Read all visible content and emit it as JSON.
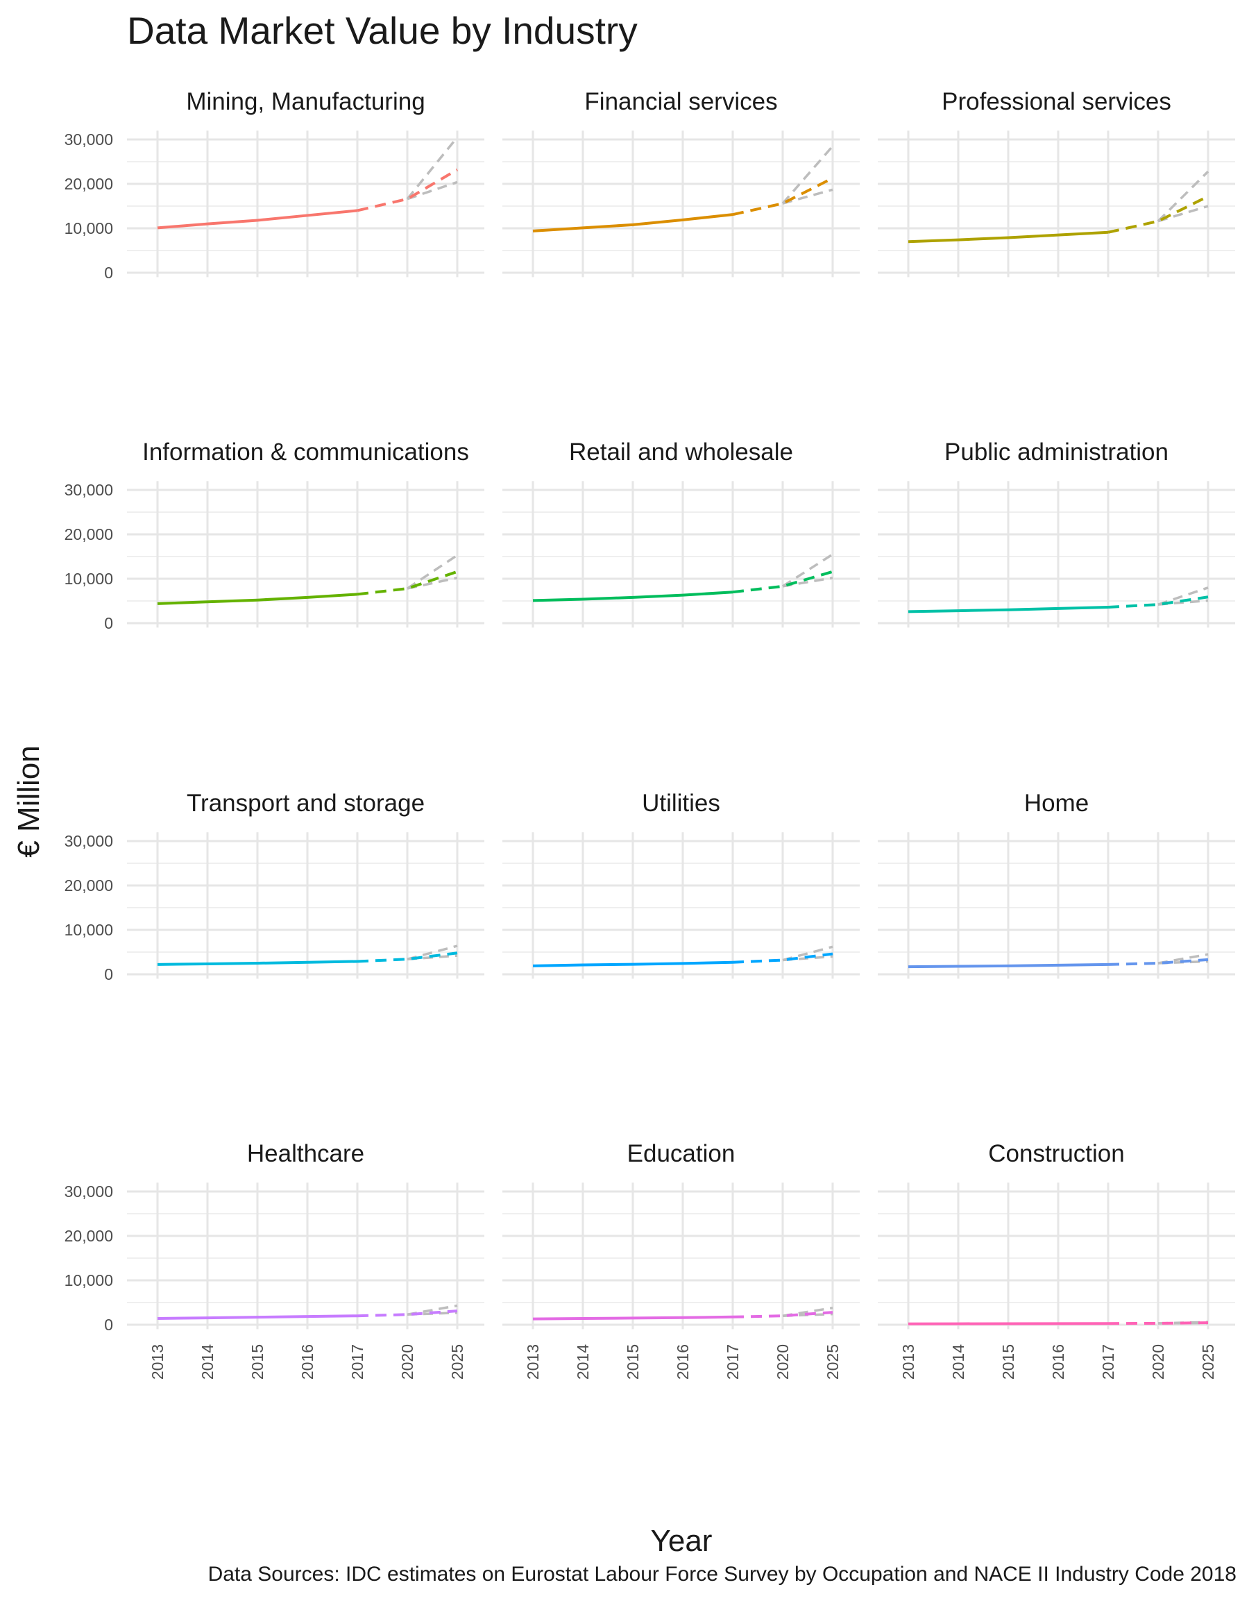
{
  "chart_data": {
    "type": "line",
    "title": "Data Market Value by Industry",
    "xlabel": "Year",
    "ylabel": "€ Million",
    "caption": "Data Sources: IDC estimates on Eurostat Labour Force Survey by Occupation and NACE II Industry Code 2018",
    "x_categories": [
      "2013",
      "2014",
      "2015",
      "2016",
      "2017",
      "2020",
      "2025"
    ],
    "y_ticks": [
      0,
      10000,
      20000,
      30000
    ],
    "y_tick_labels": [
      "0",
      "10,000",
      "20,000",
      "30,000"
    ],
    "ylim": [
      0,
      32000
    ],
    "grid": true,
    "legend": "none",
    "scenario_color": "#bdbdbd",
    "panels": [
      {
        "name": "Mining, Manufacturing",
        "color": "#F8766D",
        "values": [
          10100,
          11000,
          11800,
          12900,
          14000,
          16600,
          23200
        ],
        "high_2025": 30500,
        "low_2025": 20400
      },
      {
        "name": "Financial services",
        "color": "#DB8E00",
        "values": [
          9400,
          10100,
          10800,
          11900,
          13100,
          15600,
          21300
        ],
        "high_2025": 28500,
        "low_2025": 18700
      },
      {
        "name": "Professional services",
        "color": "#AEA200",
        "values": [
          7000,
          7400,
          7900,
          8500,
          9100,
          11600,
          17200
        ],
        "high_2025": 22800,
        "low_2025": 15000
      },
      {
        "name": "Information & communications",
        "color": "#64B200",
        "values": [
          4400,
          4800,
          5200,
          5800,
          6500,
          7800,
          11600
        ],
        "high_2025": 15300,
        "low_2025": 10200
      },
      {
        "name": "Retail and wholesale",
        "color": "#00BD5C",
        "values": [
          5100,
          5400,
          5800,
          6300,
          7000,
          8300,
          11600
        ],
        "high_2025": 15500,
        "low_2025": 10200
      },
      {
        "name": "Public administration",
        "color": "#00C1A7",
        "values": [
          2600,
          2800,
          3000,
          3300,
          3600,
          4200,
          5900
        ],
        "high_2025": 8000,
        "low_2025": 5100
      },
      {
        "name": "Transport and storage",
        "color": "#00BADE",
        "values": [
          2200,
          2350,
          2500,
          2700,
          2900,
          3400,
          4800
        ],
        "high_2025": 6400,
        "low_2025": 4200
      },
      {
        "name": "Utilities",
        "color": "#00A6FF",
        "values": [
          1900,
          2100,
          2250,
          2450,
          2700,
          3200,
          4600
        ],
        "high_2025": 6200,
        "low_2025": 4000
      },
      {
        "name": "Home",
        "color": "#6495ED",
        "values": [
          1700,
          1800,
          1900,
          2050,
          2200,
          2500,
          3300
        ],
        "high_2025": 4500,
        "low_2025": 2900
      },
      {
        "name": "Healthcare",
        "color": "#C77CFF",
        "values": [
          1400,
          1550,
          1700,
          1850,
          2000,
          2300,
          3100
        ],
        "high_2025": 4300,
        "low_2025": 2700
      },
      {
        "name": "Education",
        "color": "#E36BE4",
        "values": [
          1300,
          1400,
          1500,
          1600,
          1750,
          2000,
          2800
        ],
        "high_2025": 3800,
        "low_2025": 2400
      },
      {
        "name": "Construction",
        "color": "#FF63B6",
        "values": [
          200,
          220,
          240,
          260,
          280,
          320,
          450
        ],
        "high_2025": 600,
        "low_2025": 380
      }
    ]
  }
}
